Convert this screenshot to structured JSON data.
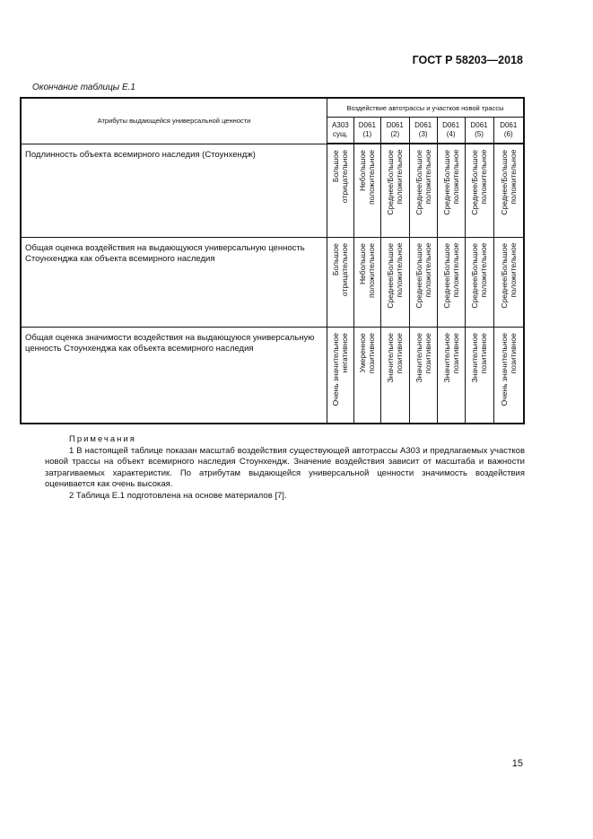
{
  "header": {
    "doc_id": "ГОСТ Р 58203—2018"
  },
  "caption": "Окончание таблицы Е.1",
  "table": {
    "attr_header": "Атрибуты выдающейся универсальной ценности",
    "group_header": "Воздействие автотрассы и участков новой трассы",
    "columns": [
      {
        "l1": "А303",
        "l2": "сущ."
      },
      {
        "l1": "D061",
        "l2": "(1)"
      },
      {
        "l1": "D061",
        "l2": "(2)"
      },
      {
        "l1": "D061",
        "l2": "(3)"
      },
      {
        "l1": "D061",
        "l2": "(4)"
      },
      {
        "l1": "D061",
        "l2": "(5)"
      },
      {
        "l1": "D061",
        "l2": "(6)"
      }
    ],
    "rows": [
      {
        "label": "Подлинность объекта всемирного наследия (Стоунхендж)",
        "values": [
          [
            "Большое",
            "отрицательное"
          ],
          [
            "Небольшое",
            "положительное"
          ],
          [
            "Среднее/Большое",
            "положительное"
          ],
          [
            "Среднее/Большое",
            "положительное"
          ],
          [
            "Среднее/Большое",
            "положительное"
          ],
          [
            "Среднее/Большое",
            "положительное"
          ],
          [
            "Среднее/Большое",
            "положительное"
          ]
        ]
      },
      {
        "label": "Общая оценка воздействия на выдающуюся универсальную ценность Стоунхенджа как объекта всемирного наследия",
        "values": [
          [
            "Большое",
            "отрицательное"
          ],
          [
            "Небольшое",
            "положительное"
          ],
          [
            "Среднее/Большое",
            "положительное"
          ],
          [
            "Среднее/Большое",
            "положительное"
          ],
          [
            "Среднее/Большое",
            "положительное"
          ],
          [
            "Среднее/Большое",
            "положительное"
          ],
          [
            "Среднее/Большое",
            "положительное"
          ]
        ]
      },
      {
        "label": "Общая оценка значимости воздействия на выдающуюся универсальную ценность Стоунхенджа как объекта всемирного наследия",
        "values": [
          [
            "Очень значительное",
            "негативное"
          ],
          [
            "Умеренное",
            "позитивное"
          ],
          [
            "Значительное",
            "позитивное"
          ],
          [
            "Значительное",
            "позитивное"
          ],
          [
            "Значительное",
            "позитивное"
          ],
          [
            "Значительное",
            "позитивное"
          ],
          [
            "Очень значительное",
            "позитивное"
          ]
        ]
      }
    ]
  },
  "notes": {
    "title": "Примечания",
    "items": [
      "1 В настоящей таблице показан масштаб воздействия существующей автотрассы А303 и предлагаемых участков новой трассы на объект всемирного наследия Стоунхендж. Значение воздействия зависит от масштаба и важности затрагиваемых характеристик. По атрибутам выдающейся универсальной ценности значимость воздействия оценивается как очень высокая.",
      "2 Таблица Е.1 подготовлена на основе материалов [7]."
    ]
  },
  "page_number": "15"
}
